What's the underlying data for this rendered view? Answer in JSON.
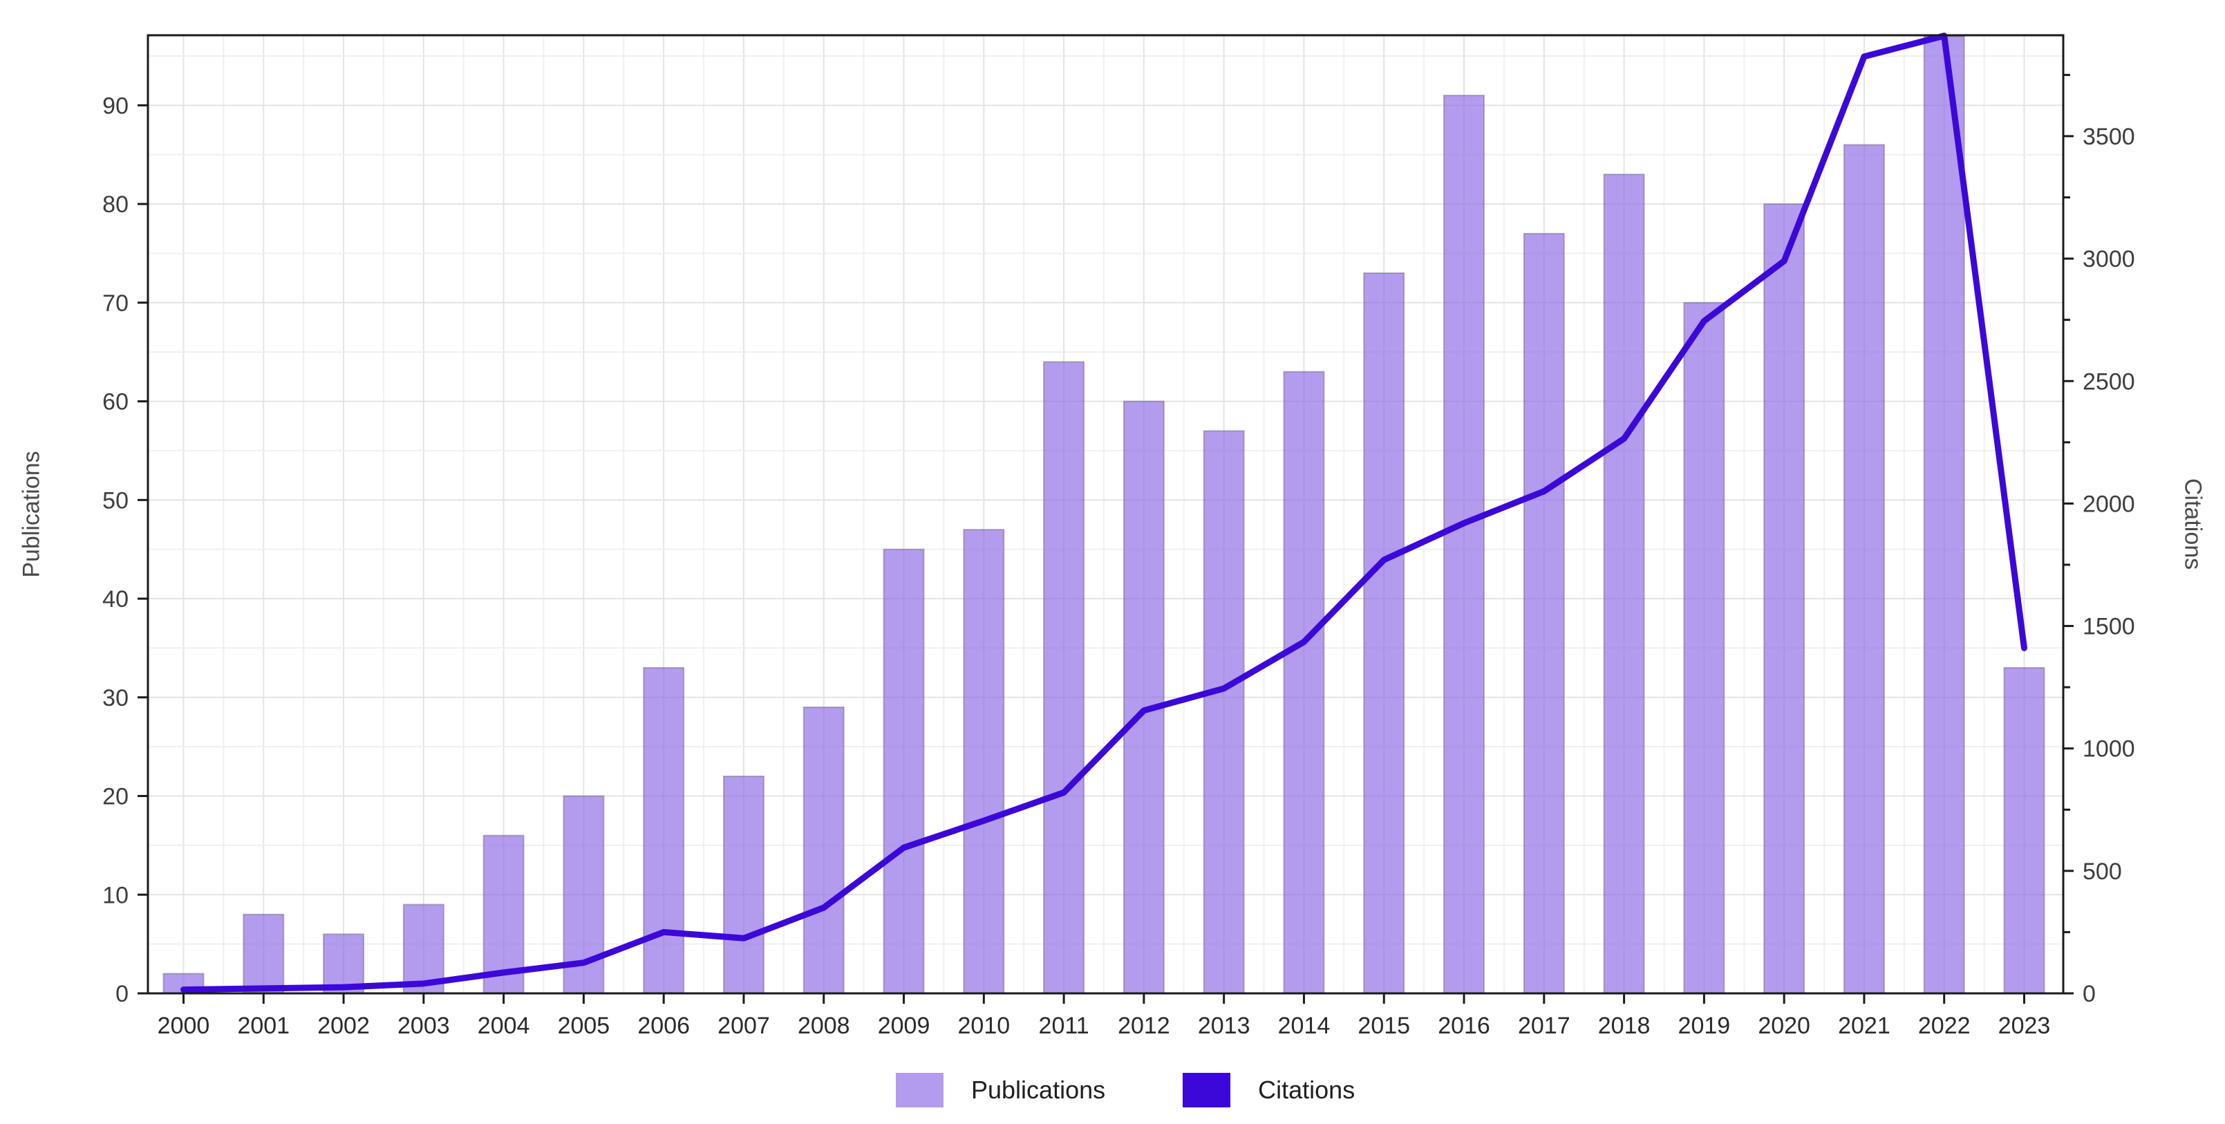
{
  "chart_data": {
    "type": "bar",
    "title": "",
    "categories": [
      "2000",
      "2001",
      "2002",
      "2003",
      "2004",
      "2005",
      "2006",
      "2007",
      "2008",
      "2009",
      "2010",
      "2011",
      "2012",
      "2013",
      "2014",
      "2015",
      "2016",
      "2017",
      "2018",
      "2019",
      "2020",
      "2021",
      "2022",
      "2023"
    ],
    "series": [
      {
        "name": "Publications",
        "type": "bar",
        "axis": "left",
        "color": "#b49dee",
        "fill": "rgba(138,101,229,0.65)",
        "values": [
          2,
          8,
          6,
          9,
          16,
          20,
          33,
          22,
          29,
          45,
          47,
          64,
          60,
          57,
          63,
          73,
          91,
          77,
          83,
          70,
          80,
          86,
          97,
          33
        ]
      },
      {
        "name": "Citations",
        "type": "line",
        "axis": "right",
        "color": "#3c08d9",
        "values": [
          15,
          20,
          25,
          40,
          85,
          125,
          250,
          225,
          350,
          595,
          705,
          820,
          1155,
          1245,
          1435,
          1770,
          1920,
          2050,
          2265,
          2745,
          2990,
          3825,
          3910,
          1410
        ]
      }
    ],
    "left_axis": {
      "label": "Publications",
      "ticks": [
        0,
        10,
        20,
        30,
        40,
        50,
        60,
        70,
        80,
        90
      ],
      "max": 97.1,
      "minor_step": 5
    },
    "right_axis": {
      "label": "Citations",
      "ticks": [
        0,
        500,
        1000,
        1500,
        2000,
        2500,
        3000,
        3500
      ],
      "max": 3912,
      "minor_step": 250
    },
    "x_axis": {
      "tick_labels": [
        "2000",
        "2001",
        "2002",
        "2003",
        "2004",
        "2005",
        "2006",
        "2007",
        "2008",
        "2009",
        "2010",
        "2011",
        "2012",
        "2013",
        "2014",
        "2015",
        "2016",
        "2017",
        "2018",
        "2019",
        "2020",
        "2021",
        "2022",
        "2023"
      ]
    },
    "grid": true,
    "legend_position": "bottom"
  },
  "legend": {
    "items": [
      {
        "label": "Publications",
        "color": "#b49dee"
      },
      {
        "label": "Citations",
        "color": "#3c08d9"
      }
    ]
  }
}
